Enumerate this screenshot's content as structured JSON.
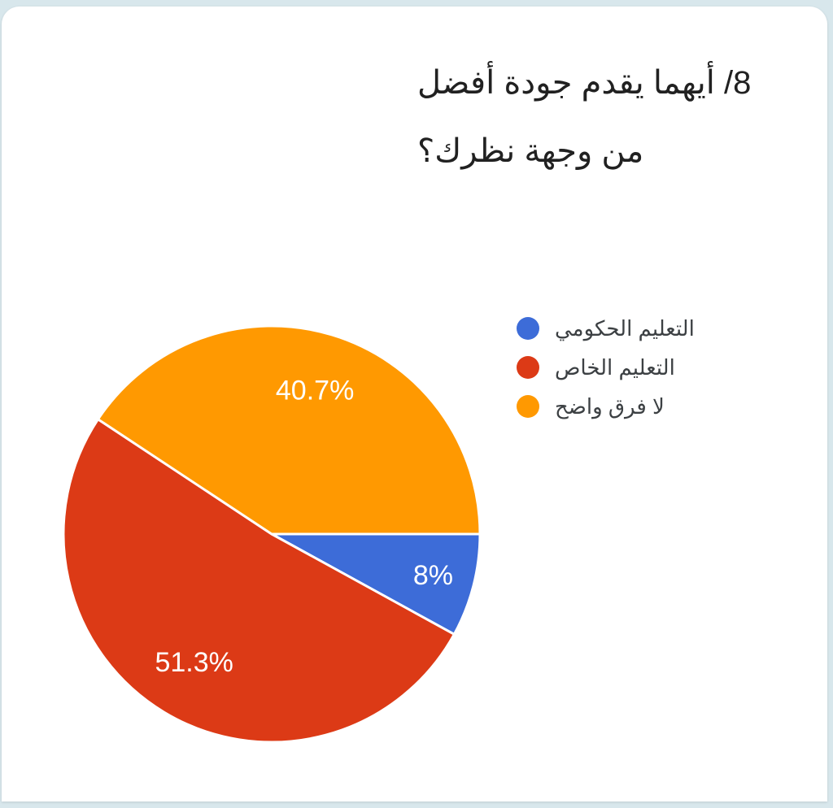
{
  "question": {
    "title_lines": [
      "8/ أيهما يقدم جودة أفضل",
      "من وجهة نظرك؟"
    ]
  },
  "chart_data": {
    "type": "pie",
    "title": "8/ أيهما يقدم جودة أفضل من وجهة نظرك؟",
    "start_angle_deg": 0,
    "direction": "clockwise",
    "legend_position": "right",
    "slice_border_color": "#ffffff",
    "label_color": "#ffffff",
    "series": [
      {
        "name": "التعليم الحكومي",
        "value": 8,
        "label": "8%",
        "color": "#3d6cd8"
      },
      {
        "name": "التعليم الخاص",
        "value": 51.3,
        "label": "51.3%",
        "color": "#dc3a16"
      },
      {
        "name": "لا فرق واضح",
        "value": 40.7,
        "label": "40.7%",
        "color": "#ff9901"
      }
    ]
  }
}
